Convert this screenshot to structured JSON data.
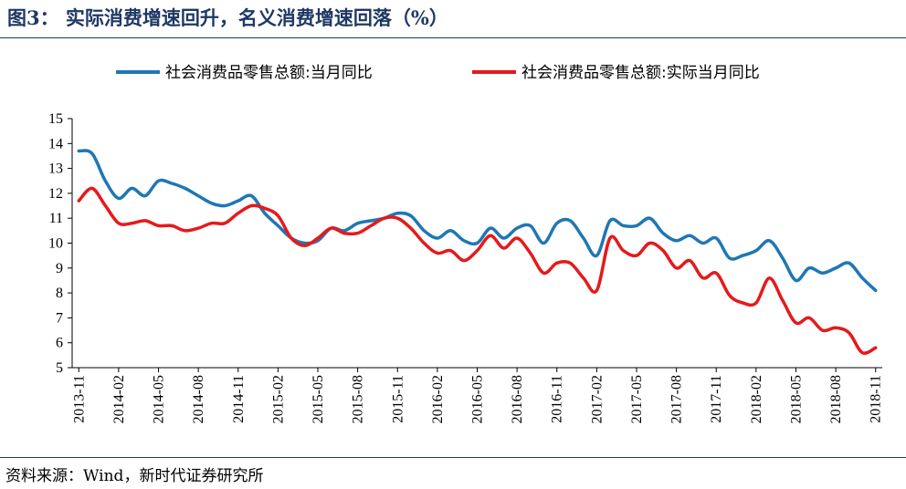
{
  "header": {
    "title": "图3：  实际消费增速回升，名义消费增速回落（%）"
  },
  "footer": {
    "source": "资料来源：Wind，新时代证券研究所"
  },
  "colors": {
    "nominal": "#1f77b4",
    "real": "#e41a1c",
    "title": "#1f3864"
  },
  "chart_data": {
    "type": "line",
    "ylim": [
      5,
      15
    ],
    "yticks": [
      5,
      6,
      7,
      8,
      9,
      10,
      11,
      12,
      13,
      14,
      15
    ],
    "xticks": [
      "2013-11",
      "2014-02",
      "2014-05",
      "2014-08",
      "2014-11",
      "2015-02",
      "2015-05",
      "2015-08",
      "2015-11",
      "2016-02",
      "2016-05",
      "2016-08",
      "2016-11",
      "2017-02",
      "2017-05",
      "2017-08",
      "2017-11",
      "2018-02",
      "2018-05",
      "2018-08",
      "2018-11"
    ],
    "x": [
      "2013-11",
      "2013-12",
      "2014-01",
      "2014-02",
      "2014-03",
      "2014-04",
      "2014-05",
      "2014-06",
      "2014-07",
      "2014-08",
      "2014-09",
      "2014-10",
      "2014-11",
      "2014-12",
      "2015-01",
      "2015-02",
      "2015-03",
      "2015-04",
      "2015-05",
      "2015-06",
      "2015-07",
      "2015-08",
      "2015-09",
      "2015-10",
      "2015-11",
      "2015-12",
      "2016-01",
      "2016-02",
      "2016-03",
      "2016-04",
      "2016-05",
      "2016-06",
      "2016-07",
      "2016-08",
      "2016-09",
      "2016-10",
      "2016-11",
      "2016-12",
      "2017-01",
      "2017-02",
      "2017-03",
      "2017-04",
      "2017-05",
      "2017-06",
      "2017-07",
      "2017-08",
      "2017-09",
      "2017-10",
      "2017-11",
      "2017-12",
      "2018-01",
      "2018-02",
      "2018-03",
      "2018-04",
      "2018-05",
      "2018-06",
      "2018-07",
      "2018-08",
      "2018-09",
      "2018-10",
      "2018-11"
    ],
    "series": [
      {
        "name": "社会消费品零售总额:当月同比",
        "values": [
          13.7,
          13.6,
          12.5,
          11.8,
          12.2,
          11.9,
          12.5,
          12.4,
          12.2,
          11.9,
          11.6,
          11.5,
          11.7,
          11.9,
          11.2,
          10.7,
          10.2,
          10.0,
          10.1,
          10.6,
          10.5,
          10.8,
          10.9,
          11.0,
          11.2,
          11.1,
          10.5,
          10.2,
          10.5,
          10.1,
          10.0,
          10.6,
          10.2,
          10.6,
          10.7,
          10.0,
          10.8,
          10.9,
          10.2,
          9.5,
          10.9,
          10.7,
          10.7,
          11.0,
          10.4,
          10.1,
          10.3,
          10.0,
          10.2,
          9.4,
          9.5,
          9.7,
          10.1,
          9.4,
          8.5,
          9.0,
          8.8,
          9.0,
          9.2,
          8.6,
          8.1
        ]
      },
      {
        "name": "社会消费品零售总额:实际当月同比",
        "values": [
          11.7,
          12.2,
          11.5,
          10.8,
          10.8,
          10.9,
          10.7,
          10.7,
          10.5,
          10.6,
          10.8,
          10.8,
          11.2,
          11.5,
          11.4,
          11.1,
          10.2,
          9.9,
          10.2,
          10.6,
          10.4,
          10.4,
          10.7,
          11.0,
          11.0,
          10.6,
          10.0,
          9.6,
          9.7,
          9.3,
          9.7,
          10.3,
          9.8,
          10.2,
          9.6,
          8.8,
          9.2,
          9.2,
          8.6,
          8.1,
          10.2,
          9.7,
          9.5,
          10.0,
          9.7,
          9.0,
          9.3,
          8.6,
          8.8,
          7.9,
          7.6,
          7.6,
          8.6,
          7.7,
          6.8,
          7.0,
          6.5,
          6.6,
          6.4,
          5.6,
          5.8
        ]
      }
    ]
  }
}
